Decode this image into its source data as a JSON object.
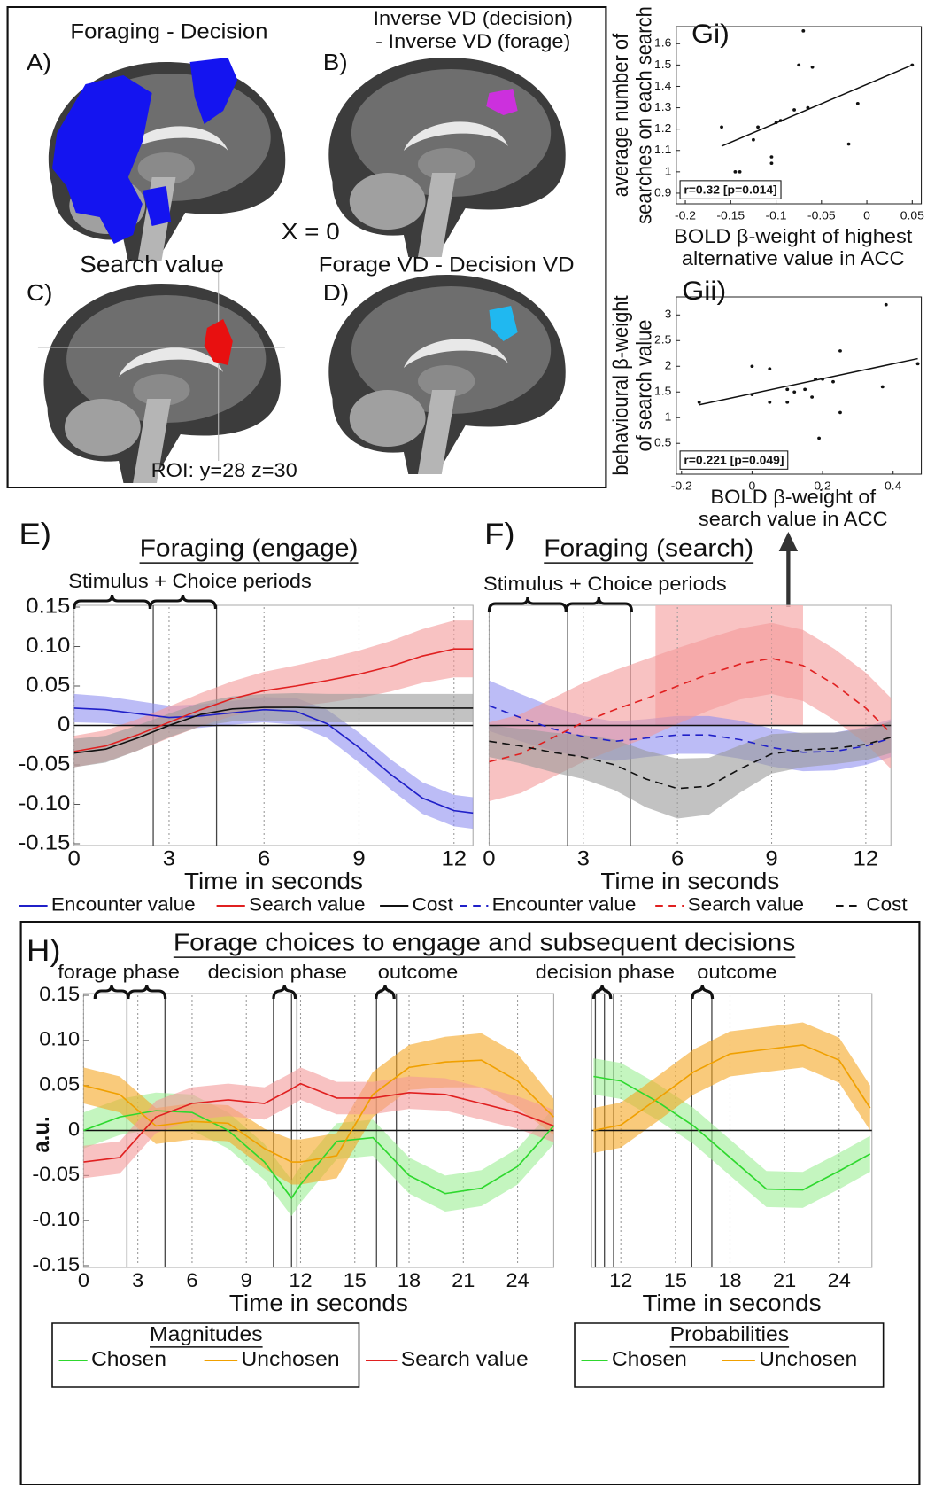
{
  "figure": {
    "panel_labels": [
      "A)",
      "B)",
      "C)",
      "D)"
    ],
    "titles": [
      "Foraging - Decision",
      "Inverse VD (decision)",
      "- Inverse VD (forage)",
      "Search value",
      "Forage VD - Decision VD"
    ],
    "slice_label": "X = 0",
    "roi_label": "ROI: y=28 z=30"
  },
  "chart_data": [
    {
      "type": "scatter",
      "label": "Gi)",
      "ylabel": [
        "average number of",
        "searches on each search"
      ],
      "xlabel": [
        "BOLD β-weight of highest",
        "alternative value in ACC"
      ],
      "annotation": "r=0.32  [p=0.014]",
      "x": [
        -0.16,
        -0.145,
        -0.14,
        -0.125,
        -0.12,
        -0.105,
        -0.105,
        -0.1,
        -0.095,
        -0.08,
        -0.075,
        -0.07,
        -0.06,
        -0.065,
        -0.02,
        -0.01,
        0.05
      ],
      "values": [
        1.21,
        1.0,
        1.0,
        1.15,
        1.21,
        1.07,
        1.04,
        1.23,
        1.24,
        1.29,
        1.5,
        1.66,
        1.49,
        1.3,
        1.13,
        1.32,
        1.5
      ],
      "color": "#111111",
      "fit_line": {
        "x": [
          -0.16,
          0.05
        ],
        "values": [
          1.12,
          1.5
        ]
      },
      "xlim": [
        -0.21,
        0.06
      ],
      "ylim": [
        0.85,
        1.68
      ],
      "xticks": [
        -0.2,
        -0.15,
        -0.1,
        -0.05,
        0,
        0.05
      ],
      "yticks": [
        0.9,
        1,
        1.1,
        1.2,
        1.3,
        1.4,
        1.5,
        1.6
      ]
    },
    {
      "type": "scatter",
      "label": "Gii)",
      "ylabel": [
        "behavioural β-weight",
        "of search value"
      ],
      "xlabel": [
        "BOLD β-weight of",
        "search value in ACC"
      ],
      "annotation": "r=0.221  [p=0.049]",
      "x": [
        -0.15,
        0.0,
        0.0,
        0.05,
        0.05,
        0.1,
        0.1,
        0.12,
        0.15,
        0.17,
        0.18,
        0.2,
        0.23,
        0.19,
        0.25,
        0.25,
        0.37,
        0.38,
        0.47
      ],
      "values": [
        1.3,
        2.0,
        1.45,
        1.95,
        1.3,
        1.55,
        1.3,
        1.5,
        1.55,
        1.4,
        1.75,
        1.75,
        1.7,
        0.6,
        1.1,
        2.3,
        1.6,
        3.2,
        2.05
      ],
      "color": "#111111",
      "fit_line": {
        "x": [
          -0.15,
          0.47
        ],
        "values": [
          1.25,
          2.15
        ]
      },
      "xlim": [
        -0.215,
        0.48
      ],
      "ylim": [
        -0.1,
        3.35
      ],
      "xticks": [
        -0.2,
        0,
        0.2,
        0.4
      ],
      "yticks": [
        0.5,
        1,
        1.5,
        2,
        2.5,
        3
      ]
    },
    {
      "type": "line",
      "label": "E)",
      "title": "Foraging (engage)",
      "annotations": [
        "Stimulus + Choice periods"
      ],
      "xlabel": "Time in seconds",
      "x": [
        0,
        1,
        2,
        3,
        4,
        5,
        6,
        7,
        8,
        9,
        10,
        11,
        12,
        12.6
      ],
      "xlim": [
        0,
        12.6
      ],
      "ylim": [
        -0.15,
        0.15
      ],
      "xticks": [
        0,
        3,
        6,
        9,
        12
      ],
      "yticks": [
        0.15,
        {
          "value": 0.1,
          "label": "0.10"
        },
        0.05,
        0,
        -0.05,
        {
          "value": -0.1,
          "label": "-0.10"
        },
        -0.15
      ],
      "grid": true,
      "event_lines": [
        2.5,
        4.5
      ],
      "series": [
        {
          "name": "Encounter value",
          "color": "#2020c8",
          "band_color": "#8f8ff0",
          "dashed": false,
          "values": [
            0.022,
            0.02,
            0.015,
            0.01,
            0.012,
            0.016,
            0.02,
            0.018,
            0.002,
            -0.028,
            -0.062,
            -0.092,
            -0.108,
            -0.111
          ],
          "errors": [
            0.018,
            0.017,
            0.016,
            0.015,
            0.015,
            0.015,
            0.016,
            0.017,
            0.018,
            0.019,
            0.019,
            0.02,
            0.02,
            0.02
          ]
        },
        {
          "name": "Search value",
          "color": "#e02020",
          "band_color": "#f39a9a",
          "dashed": false,
          "values": [
            -0.033,
            -0.026,
            -0.012,
            0.004,
            0.02,
            0.034,
            0.044,
            0.05,
            0.057,
            0.065,
            0.075,
            0.088,
            0.097,
            0.097
          ],
          "errors": [
            0.02,
            0.02,
            0.02,
            0.02,
            0.021,
            0.022,
            0.024,
            0.026,
            0.028,
            0.03,
            0.032,
            0.034,
            0.036,
            0.036
          ]
        },
        {
          "name": "Cost",
          "color": "#111111",
          "band_color": "#9a9a9a",
          "dashed": false,
          "values": [
            -0.035,
            -0.03,
            -0.016,
            0.0,
            0.014,
            0.021,
            0.023,
            0.023,
            0.022,
            0.022,
            0.022,
            0.022,
            0.022,
            0.022
          ],
          "errors": [
            0.018,
            0.017,
            0.016,
            0.015,
            0.015,
            0.016,
            0.017,
            0.018,
            0.018,
            0.018,
            0.018,
            0.018,
            0.018,
            0.018
          ]
        }
      ]
    },
    {
      "type": "line",
      "label": "F)",
      "title": "Foraging (search)",
      "annotations": [
        "Stimulus + Choice periods"
      ],
      "xlabel": "Time in seconds",
      "x": [
        0,
        1,
        2,
        3,
        4,
        5,
        6,
        7,
        8,
        9,
        10,
        11,
        12,
        12.8
      ],
      "xlim": [
        0,
        12.8
      ],
      "ylim": [
        -0.15,
        0.15
      ],
      "xticks": [
        0,
        3,
        6,
        9,
        12
      ],
      "grid": true,
      "event_lines": [
        2.5,
        4.5
      ],
      "shaded_region": [
        5.3,
        10
      ],
      "shaded_color": "#f7b4b4",
      "series": [
        {
          "name": "Encounter value",
          "color": "#2020c8",
          "band_color": "#8f8ff0",
          "dashed": true,
          "values": [
            0.025,
            0.01,
            -0.004,
            -0.014,
            -0.02,
            -0.016,
            -0.012,
            -0.012,
            -0.018,
            -0.028,
            -0.034,
            -0.033,
            -0.026,
            -0.016
          ],
          "errors": [
            0.032,
            0.03,
            0.028,
            0.026,
            0.025,
            0.024,
            0.024,
            0.024,
            0.024,
            0.024,
            0.024,
            0.024,
            0.024,
            0.024
          ]
        },
        {
          "name": "Search value",
          "color": "#e02020",
          "band_color": "#f39a9a",
          "dashed": true,
          "values": [
            -0.046,
            -0.036,
            -0.016,
            0.004,
            0.02,
            0.034,
            0.05,
            0.065,
            0.078,
            0.085,
            0.076,
            0.052,
            0.022,
            -0.01
          ],
          "errors": [
            0.05,
            0.05,
            0.05,
            0.05,
            0.05,
            0.05,
            0.048,
            0.046,
            0.045,
            0.045,
            0.045,
            0.045,
            0.045,
            0.045
          ]
        },
        {
          "name": "Cost",
          "color": "#111111",
          "band_color": "#9a9a9a",
          "dashed": true,
          "values": [
            -0.02,
            -0.026,
            -0.034,
            -0.04,
            -0.05,
            -0.068,
            -0.08,
            -0.077,
            -0.055,
            -0.036,
            -0.031,
            -0.029,
            -0.024,
            -0.015
          ],
          "errors": [
            0.02,
            0.022,
            0.025,
            0.028,
            0.032,
            0.036,
            0.038,
            0.036,
            0.03,
            0.025,
            0.022,
            0.02,
            0.02,
            0.02
          ]
        }
      ]
    },
    {
      "type": "line",
      "label": "H)",
      "title": "Forage choices to engage and subsequent decisions",
      "annotations": [
        "forage phase",
        "decision phase",
        "outcome"
      ],
      "xlabel": "Time in seconds",
      "ylabel": "a.u.",
      "legend_title": "Magnitudes",
      "x": [
        0,
        2,
        4,
        6,
        8,
        10,
        11.5,
        12,
        14,
        16,
        18,
        20,
        22,
        24,
        26
      ],
      "xlim": [
        0,
        26
      ],
      "ylim": [
        -0.15,
        0.15
      ],
      "xticks": [
        0,
        3,
        6,
        9,
        12,
        15,
        18,
        21,
        24
      ],
      "yticks": [
        0.15,
        {
          "value": 0.1,
          "label": "0.10"
        },
        0.05,
        0,
        -0.05,
        {
          "value": -0.1,
          "label": "-0.10"
        },
        -0.15
      ],
      "grid": true,
      "event_lines": [
        2.4,
        4.5,
        10.5,
        11.5,
        11.8,
        16.2,
        17.3
      ],
      "series": [
        {
          "name": "Chosen",
          "color": "#2ed82e",
          "band_color": "#9cef94",
          "dashed": false,
          "values": [
            0.0,
            0.015,
            0.022,
            0.02,
            0.0,
            -0.035,
            -0.075,
            -0.06,
            -0.012,
            -0.008,
            -0.05,
            -0.07,
            -0.064,
            -0.04,
            0.005
          ],
          "errors": [
            0.02,
            0.02,
            0.02,
            0.02,
            0.02,
            0.02,
            0.02,
            0.02,
            0.02,
            0.02,
            0.02,
            0.02,
            0.02,
            0.02,
            0.02
          ]
        },
        {
          "name": "Unchosen",
          "color": "#f0a000",
          "band_color": "#f5a623",
          "dashed": false,
          "values": [
            0.05,
            0.04,
            0.005,
            0.01,
            0.008,
            -0.02,
            -0.035,
            -0.035,
            -0.028,
            0.04,
            0.07,
            0.076,
            0.078,
            0.055,
            0.015
          ],
          "errors": [
            0.02,
            0.02,
            0.02,
            0.02,
            0.02,
            0.022,
            0.025,
            0.025,
            0.025,
            0.025,
            0.025,
            0.028,
            0.03,
            0.03,
            0.02
          ]
        },
        {
          "name": "Search value",
          "color": "#e02020",
          "band_color": "#f39a9a",
          "dashed": false,
          "values": [
            -0.035,
            -0.03,
            0.015,
            0.03,
            0.034,
            0.03,
            0.046,
            0.052,
            0.036,
            0.036,
            0.042,
            0.04,
            0.03,
            0.02,
            0.005
          ],
          "errors": [
            0.018,
            0.018,
            0.018,
            0.018,
            0.018,
            0.018,
            0.018,
            0.018,
            0.018,
            0.018,
            0.018,
            0.018,
            0.018,
            0.018,
            0.018
          ]
        }
      ]
    },
    {
      "type": "line",
      "annotations": [
        "decision phase",
        "outcome"
      ],
      "xlabel": "Time in seconds",
      "legend_title": "Probabilities",
      "x": [
        10.5,
        12,
        14,
        16,
        18,
        20,
        22,
        24,
        25.7
      ],
      "xlim": [
        10.4,
        25.8
      ],
      "ylim": [
        -0.15,
        0.15
      ],
      "xticks": [
        12,
        15,
        18,
        21,
        24
      ],
      "grid": true,
      "event_lines": [
        10.6,
        11.1,
        11.6,
        15.9,
        17.0
      ],
      "series": [
        {
          "name": "Chosen",
          "color": "#2ed82e",
          "band_color": "#9cef94",
          "dashed": false,
          "values": [
            0.06,
            0.055,
            0.032,
            0.005,
            -0.03,
            -0.065,
            -0.066,
            -0.045,
            -0.026
          ],
          "errors": [
            0.02,
            0.02,
            0.02,
            0.02,
            0.02,
            0.02,
            0.02,
            0.02,
            0.02
          ]
        },
        {
          "name": "Unchosen",
          "color": "#f0a000",
          "band_color": "#f5a623",
          "dashed": false,
          "values": [
            0.0,
            0.006,
            0.035,
            0.065,
            0.085,
            0.09,
            0.095,
            0.078,
            0.025
          ],
          "errors": [
            0.025,
            0.025,
            0.025,
            0.025,
            0.025,
            0.025,
            0.025,
            0.025,
            0.025
          ]
        }
      ]
    }
  ]
}
